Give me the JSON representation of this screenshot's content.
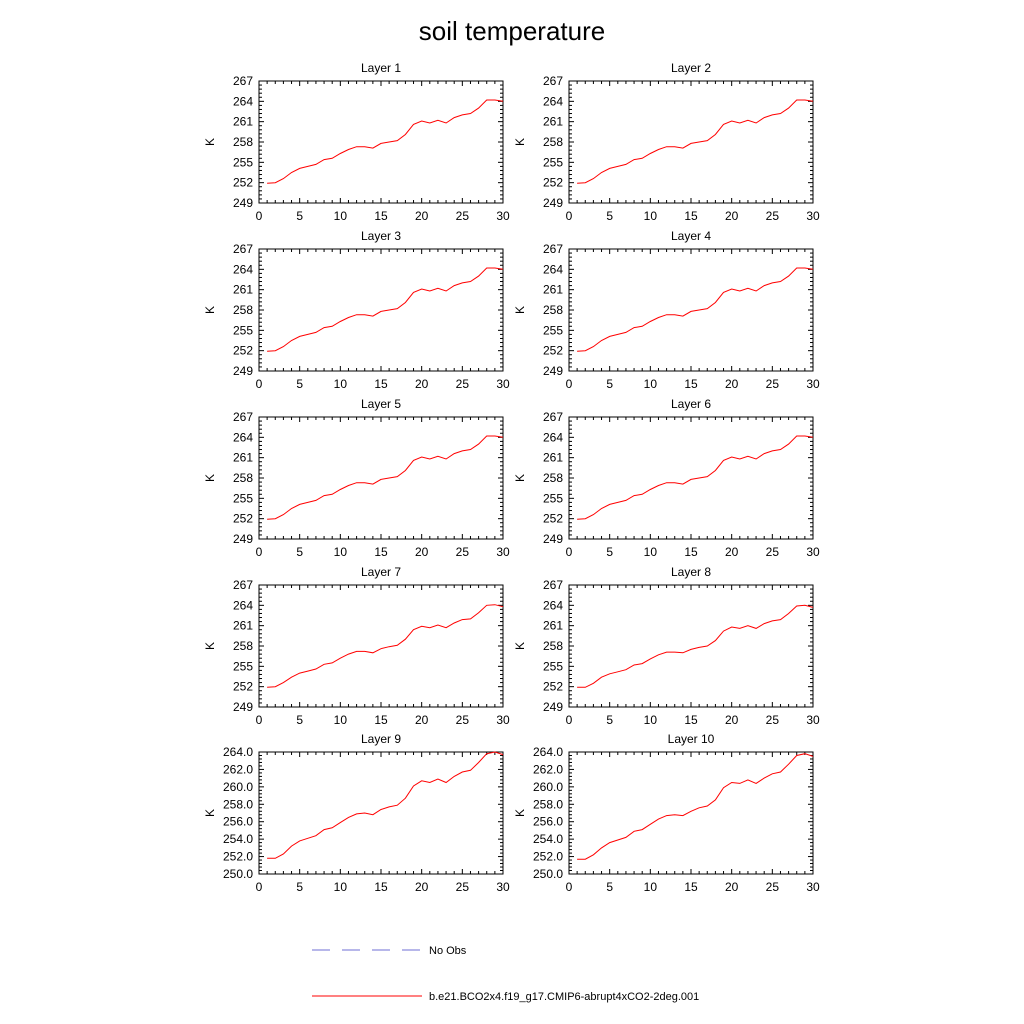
{
  "title": "soil temperature",
  "colors": {
    "model": "#ff0000",
    "obs": "#6f6fd6",
    "axis": "#000000"
  },
  "chart_data": [
    {
      "type": "line",
      "title": "Layer 1",
      "xlabel": "",
      "ylabel": "K",
      "xlim": [
        0,
        30
      ],
      "xticks": [
        0,
        5,
        10,
        15,
        20,
        25,
        30
      ],
      "ylim": [
        249,
        267
      ],
      "yticks": [
        "249",
        "252",
        "255",
        "258",
        "261",
        "264",
        "267"
      ],
      "series": [
        {
          "name": "b.e21.BCO2x4.f19_g17.CMIP6-abrupt4xCO2-2deg.001",
          "x": [
            1,
            2,
            3,
            4,
            5,
            6,
            7,
            8,
            9,
            10,
            11,
            12,
            13,
            14,
            15,
            16,
            17,
            18,
            19,
            20,
            21,
            22,
            23,
            24,
            25,
            26,
            27,
            28,
            29,
            30
          ],
          "values": [
            251.9,
            252.0,
            252.6,
            253.5,
            254.1,
            254.4,
            254.7,
            255.4,
            255.6,
            256.3,
            256.9,
            257.3,
            257.3,
            257.1,
            257.8,
            258.0,
            258.2,
            259.1,
            260.6,
            261.1,
            260.8,
            261.2,
            260.8,
            261.6,
            262.0,
            262.2,
            263.0,
            264.2,
            264.2,
            264.0
          ]
        }
      ]
    },
    {
      "type": "line",
      "title": "Layer 2",
      "xlabel": "",
      "ylabel": "K",
      "xlim": [
        0,
        30
      ],
      "xticks": [
        0,
        5,
        10,
        15,
        20,
        25,
        30
      ],
      "ylim": [
        249,
        267
      ],
      "yticks": [
        "249",
        "252",
        "255",
        "258",
        "261",
        "264",
        "267"
      ],
      "series": [
        {
          "name": "b.e21.BCO2x4.f19_g17.CMIP6-abrupt4xCO2-2deg.001",
          "x": [
            1,
            2,
            3,
            4,
            5,
            6,
            7,
            8,
            9,
            10,
            11,
            12,
            13,
            14,
            15,
            16,
            17,
            18,
            19,
            20,
            21,
            22,
            23,
            24,
            25,
            26,
            27,
            28,
            29,
            30
          ],
          "values": [
            251.9,
            252.0,
            252.6,
            253.5,
            254.1,
            254.4,
            254.7,
            255.4,
            255.6,
            256.3,
            256.9,
            257.3,
            257.3,
            257.1,
            257.8,
            258.0,
            258.2,
            259.1,
            260.6,
            261.1,
            260.8,
            261.2,
            260.8,
            261.6,
            262.0,
            262.2,
            263.0,
            264.2,
            264.2,
            264.0
          ]
        }
      ]
    },
    {
      "type": "line",
      "title": "Layer 3",
      "xlabel": "",
      "ylabel": "K",
      "xlim": [
        0,
        30
      ],
      "xticks": [
        0,
        5,
        10,
        15,
        20,
        25,
        30
      ],
      "ylim": [
        249,
        267
      ],
      "yticks": [
        "249",
        "252",
        "255",
        "258",
        "261",
        "264",
        "267"
      ],
      "series": [
        {
          "name": "b.e21.BCO2x4.f19_g17.CMIP6-abrupt4xCO2-2deg.001",
          "x": [
            1,
            2,
            3,
            4,
            5,
            6,
            7,
            8,
            9,
            10,
            11,
            12,
            13,
            14,
            15,
            16,
            17,
            18,
            19,
            20,
            21,
            22,
            23,
            24,
            25,
            26,
            27,
            28,
            29,
            30
          ],
          "values": [
            251.9,
            252.0,
            252.6,
            253.5,
            254.1,
            254.4,
            254.7,
            255.4,
            255.6,
            256.3,
            256.9,
            257.3,
            257.3,
            257.1,
            257.8,
            258.0,
            258.2,
            259.1,
            260.6,
            261.1,
            260.8,
            261.2,
            260.8,
            261.6,
            262.0,
            262.2,
            263.0,
            264.2,
            264.2,
            264.0
          ]
        }
      ]
    },
    {
      "type": "line",
      "title": "Layer 4",
      "xlabel": "",
      "ylabel": "K",
      "xlim": [
        0,
        30
      ],
      "xticks": [
        0,
        5,
        10,
        15,
        20,
        25,
        30
      ],
      "ylim": [
        249,
        267
      ],
      "yticks": [
        "249",
        "252",
        "255",
        "258",
        "261",
        "264",
        "267"
      ],
      "series": [
        {
          "name": "b.e21.BCO2x4.f19_g17.CMIP6-abrupt4xCO2-2deg.001",
          "x": [
            1,
            2,
            3,
            4,
            5,
            6,
            7,
            8,
            9,
            10,
            11,
            12,
            13,
            14,
            15,
            16,
            17,
            18,
            19,
            20,
            21,
            22,
            23,
            24,
            25,
            26,
            27,
            28,
            29,
            30
          ],
          "values": [
            251.9,
            252.0,
            252.6,
            253.5,
            254.1,
            254.4,
            254.7,
            255.4,
            255.6,
            256.3,
            256.9,
            257.3,
            257.3,
            257.1,
            257.8,
            258.0,
            258.2,
            259.1,
            260.6,
            261.1,
            260.8,
            261.2,
            260.8,
            261.6,
            262.0,
            262.2,
            263.0,
            264.2,
            264.2,
            264.0
          ]
        }
      ]
    },
    {
      "type": "line",
      "title": "Layer 5",
      "xlabel": "",
      "ylabel": "K",
      "xlim": [
        0,
        30
      ],
      "xticks": [
        0,
        5,
        10,
        15,
        20,
        25,
        30
      ],
      "ylim": [
        249,
        267
      ],
      "yticks": [
        "249",
        "252",
        "255",
        "258",
        "261",
        "264",
        "267"
      ],
      "series": [
        {
          "name": "b.e21.BCO2x4.f19_g17.CMIP6-abrupt4xCO2-2deg.001",
          "x": [
            1,
            2,
            3,
            4,
            5,
            6,
            7,
            8,
            9,
            10,
            11,
            12,
            13,
            14,
            15,
            16,
            17,
            18,
            19,
            20,
            21,
            22,
            23,
            24,
            25,
            26,
            27,
            28,
            29,
            30
          ],
          "values": [
            251.9,
            252.0,
            252.6,
            253.5,
            254.1,
            254.4,
            254.7,
            255.4,
            255.6,
            256.3,
            256.9,
            257.3,
            257.3,
            257.1,
            257.8,
            258.0,
            258.2,
            259.1,
            260.6,
            261.1,
            260.8,
            261.2,
            260.8,
            261.6,
            262.0,
            262.2,
            263.0,
            264.2,
            264.2,
            264.0
          ]
        }
      ]
    },
    {
      "type": "line",
      "title": "Layer 6",
      "xlabel": "",
      "ylabel": "K",
      "xlim": [
        0,
        30
      ],
      "xticks": [
        0,
        5,
        10,
        15,
        20,
        25,
        30
      ],
      "ylim": [
        249,
        267
      ],
      "yticks": [
        "249",
        "252",
        "255",
        "258",
        "261",
        "264",
        "267"
      ],
      "series": [
        {
          "name": "b.e21.BCO2x4.f19_g17.CMIP6-abrupt4xCO2-2deg.001",
          "x": [
            1,
            2,
            3,
            4,
            5,
            6,
            7,
            8,
            9,
            10,
            11,
            12,
            13,
            14,
            15,
            16,
            17,
            18,
            19,
            20,
            21,
            22,
            23,
            24,
            25,
            26,
            27,
            28,
            29,
            30
          ],
          "values": [
            251.9,
            252.0,
            252.6,
            253.5,
            254.1,
            254.4,
            254.7,
            255.4,
            255.6,
            256.3,
            256.9,
            257.3,
            257.3,
            257.1,
            257.8,
            258.0,
            258.2,
            259.1,
            260.6,
            261.1,
            260.8,
            261.2,
            260.8,
            261.6,
            262.0,
            262.2,
            263.0,
            264.2,
            264.2,
            264.0
          ]
        }
      ]
    },
    {
      "type": "line",
      "title": "Layer 7",
      "xlabel": "",
      "ylabel": "K",
      "xlim": [
        0,
        30
      ],
      "xticks": [
        0,
        5,
        10,
        15,
        20,
        25,
        30
      ],
      "ylim": [
        249,
        267
      ],
      "yticks": [
        "249",
        "252",
        "255",
        "258",
        "261",
        "264",
        "267"
      ],
      "series": [
        {
          "name": "b.e21.BCO2x4.f19_g17.CMIP6-abrupt4xCO2-2deg.001",
          "x": [
            1,
            2,
            3,
            4,
            5,
            6,
            7,
            8,
            9,
            10,
            11,
            12,
            13,
            14,
            15,
            16,
            17,
            18,
            19,
            20,
            21,
            22,
            23,
            24,
            25,
            26,
            27,
            28,
            29,
            30
          ],
          "values": [
            251.9,
            252.0,
            252.6,
            253.4,
            254.0,
            254.3,
            254.6,
            255.3,
            255.5,
            256.2,
            256.8,
            257.2,
            257.2,
            257.0,
            257.6,
            257.9,
            258.1,
            259.0,
            260.4,
            260.9,
            260.7,
            261.1,
            260.7,
            261.4,
            261.9,
            262.0,
            262.9,
            264.0,
            264.1,
            263.8
          ]
        }
      ]
    },
    {
      "type": "line",
      "title": "Layer 8",
      "xlabel": "",
      "ylabel": "K",
      "xlim": [
        0,
        30
      ],
      "xticks": [
        0,
        5,
        10,
        15,
        20,
        25,
        30
      ],
      "ylim": [
        249,
        267
      ],
      "yticks": [
        "249",
        "252",
        "255",
        "258",
        "261",
        "264",
        "267"
      ],
      "series": [
        {
          "name": "b.e21.BCO2x4.f19_g17.CMIP6-abrupt4xCO2-2deg.001",
          "x": [
            1,
            2,
            3,
            4,
            5,
            6,
            7,
            8,
            9,
            10,
            11,
            12,
            13,
            14,
            15,
            16,
            17,
            18,
            19,
            20,
            21,
            22,
            23,
            24,
            25,
            26,
            27,
            28,
            29,
            30
          ],
          "values": [
            251.9,
            251.9,
            252.5,
            253.4,
            253.9,
            254.2,
            254.5,
            255.2,
            255.4,
            256.1,
            256.7,
            257.1,
            257.1,
            257.0,
            257.5,
            257.8,
            258.0,
            258.8,
            260.2,
            260.8,
            260.6,
            261.0,
            260.6,
            261.3,
            261.7,
            261.9,
            262.8,
            263.9,
            264.0,
            263.7
          ]
        }
      ]
    },
    {
      "type": "line",
      "title": "Layer 9",
      "xlabel": "",
      "ylabel": "K",
      "xlim": [
        0,
        30
      ],
      "xticks": [
        0,
        5,
        10,
        15,
        20,
        25,
        30
      ],
      "ylim": [
        250,
        264
      ],
      "yticks": [
        "250.0",
        "252.0",
        "254.0",
        "256.0",
        "258.0",
        "260.0",
        "262.0",
        "264.0"
      ],
      "series": [
        {
          "name": "b.e21.BCO2x4.f19_g17.CMIP6-abrupt4xCO2-2deg.001",
          "x": [
            1,
            2,
            3,
            4,
            5,
            6,
            7,
            8,
            9,
            10,
            11,
            12,
            13,
            14,
            15,
            16,
            17,
            18,
            19,
            20,
            21,
            22,
            23,
            24,
            25,
            26,
            27,
            28,
            29,
            30
          ],
          "values": [
            251.8,
            251.8,
            252.3,
            253.2,
            253.8,
            254.1,
            254.4,
            255.1,
            255.3,
            255.9,
            256.5,
            256.9,
            257.0,
            256.8,
            257.4,
            257.7,
            257.9,
            258.7,
            260.1,
            260.7,
            260.5,
            260.9,
            260.5,
            261.2,
            261.7,
            261.9,
            262.8,
            263.8,
            264.0,
            263.7
          ]
        }
      ]
    },
    {
      "type": "line",
      "title": "Layer 10",
      "xlabel": "",
      "ylabel": "K",
      "xlim": [
        0,
        30
      ],
      "xticks": [
        0,
        5,
        10,
        15,
        20,
        25,
        30
      ],
      "ylim": [
        250,
        264
      ],
      "yticks": [
        "250.0",
        "252.0",
        "254.0",
        "256.0",
        "258.0",
        "260.0",
        "262.0",
        "264.0"
      ],
      "series": [
        {
          "name": "b.e21.BCO2x4.f19_g17.CMIP6-abrupt4xCO2-2deg.001",
          "x": [
            1,
            2,
            3,
            4,
            5,
            6,
            7,
            8,
            9,
            10,
            11,
            12,
            13,
            14,
            15,
            16,
            17,
            18,
            19,
            20,
            21,
            22,
            23,
            24,
            25,
            26,
            27,
            28,
            29,
            30
          ],
          "values": [
            251.7,
            251.7,
            252.2,
            253.0,
            253.6,
            253.9,
            254.2,
            254.9,
            255.1,
            255.7,
            256.3,
            256.7,
            256.8,
            256.7,
            257.2,
            257.6,
            257.8,
            258.5,
            259.9,
            260.5,
            260.4,
            260.8,
            260.4,
            261.0,
            261.5,
            261.7,
            262.6,
            263.6,
            263.8,
            263.5
          ]
        }
      ]
    }
  ],
  "legend": {
    "obs_label": "No Obs",
    "model_label": "b.e21.BCO2x4.f19_g17.CMIP6-abrupt4xCO2-2deg.001"
  }
}
